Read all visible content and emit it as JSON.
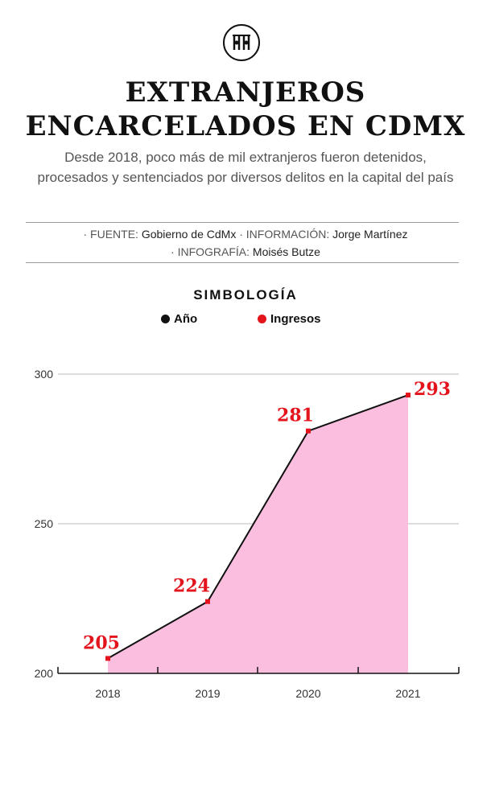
{
  "header": {
    "logo_icon": "bars-prison-icon",
    "title_line1": "EXTRANJEROS",
    "title_line2": "ENCARCELADOS EN CDMX",
    "subtitle": "Desde 2018, poco más de mil extranjeros fueron detenidos, procesados y sentenciados por diversos delitos en la capital del país"
  },
  "credits": {
    "fuente_label": "· FUENTE:",
    "fuente_value": "Gobierno de CdMx",
    "info_label": "· INFORMACIÓN:",
    "info_value": "Jorge Martínez",
    "infografia_label": "· INFOGRAFÍA:",
    "infografia_value": "Moisés Butze"
  },
  "legend": {
    "title": "SIMBOLOGÍA",
    "year_label": "Año",
    "year_color": "#111111",
    "ingresos_label": "Ingresos",
    "ingresos_color": "#e3141c"
  },
  "colors": {
    "area_fill": "#fbbedf",
    "line": "#111111",
    "marker": "#e3141c",
    "grid": "#bbbbbb"
  },
  "chart_data": {
    "type": "area",
    "x": [
      "2018",
      "2019",
      "2020",
      "2021"
    ],
    "series": [
      {
        "name": "Ingresos",
        "values": [
          205,
          224,
          281,
          293
        ]
      }
    ],
    "ylim": [
      200,
      300
    ],
    "yticks": [
      200,
      250,
      300
    ],
    "data_labels": [
      "205",
      "224",
      "281",
      "293"
    ],
    "grid": true
  }
}
